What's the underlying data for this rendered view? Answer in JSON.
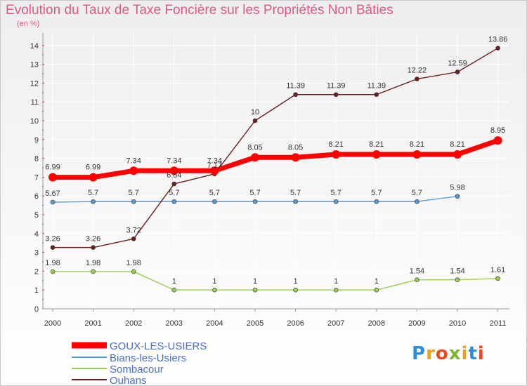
{
  "chart_data": {
    "type": "line",
    "title": "Evolution du Taux de Taxe Foncière sur les Propriétés Non Bâties",
    "subtitle": "(en %)",
    "x": [
      "2000",
      "2001",
      "2002",
      "2003",
      "2004",
      "2005",
      "2006",
      "2007",
      "2008",
      "2009",
      "2010",
      "2011"
    ],
    "y_ticks": [
      "0",
      "1",
      "2",
      "3",
      "4",
      "5",
      "6",
      "7",
      "8",
      "9",
      "10",
      "11",
      "12",
      "13",
      "14"
    ],
    "ylim": [
      0,
      14
    ],
    "series": [
      {
        "name": "GOUX-LES-USIERS",
        "color": "#ff0000",
        "values": [
          6.99,
          6.99,
          7.34,
          7.34,
          7.34,
          8.05,
          8.05,
          8.21,
          8.21,
          8.21,
          8.21,
          8.95
        ],
        "labels": [
          "6.99",
          "6.99",
          "7.34",
          "7.34",
          "7.34",
          "8.05",
          "8.05",
          "8.21",
          "8.21",
          "8.21",
          "8.21",
          "8.95"
        ]
      },
      {
        "name": "Bians-les-Usiers",
        "color": "#5b9bd5",
        "values": [
          5.67,
          5.7,
          5.7,
          5.7,
          5.7,
          5.7,
          5.7,
          5.7,
          5.7,
          5.7,
          5.98,
          null
        ],
        "labels": [
          "5.67",
          "5.7",
          "5.7",
          "5.7",
          "5.7",
          "5.7",
          "5.7",
          "5.7",
          "5.7",
          "5.7",
          "5.98",
          ""
        ]
      },
      {
        "name": "Sombacour",
        "color": "#99cc55",
        "values": [
          1.98,
          1.98,
          1.98,
          1,
          1,
          1,
          1,
          1,
          1,
          1.54,
          1.54,
          1.61
        ],
        "labels": [
          "1.98",
          "1.98",
          "1.98",
          "1",
          "1",
          "1",
          "1",
          "1",
          "1",
          "1.54",
          "1.54",
          "1.61"
        ]
      },
      {
        "name": "Ouhans",
        "color": "#6b1f1f",
        "values": [
          3.26,
          3.26,
          3.72,
          6.64,
          7.17,
          10,
          11.39,
          11.39,
          11.39,
          12.22,
          12.59,
          13.86
        ],
        "labels": [
          "3.26",
          "3.26",
          "3.72",
          "6.64",
          "7.17",
          "10",
          "11.39",
          "11.39",
          "11.39",
          "12.22",
          "12.59",
          "13.86"
        ]
      }
    ],
    "legend_position": "bottom-left"
  },
  "branding": {
    "logo_letters": [
      "P",
      "r",
      "o",
      "x",
      "i",
      "t",
      "i"
    ],
    "logo_colors": [
      "#2a8fd6",
      "#e8a020",
      "#e84a20",
      "#7ab630",
      "#e8a020",
      "#2a8fd6",
      "#e84a20"
    ]
  }
}
